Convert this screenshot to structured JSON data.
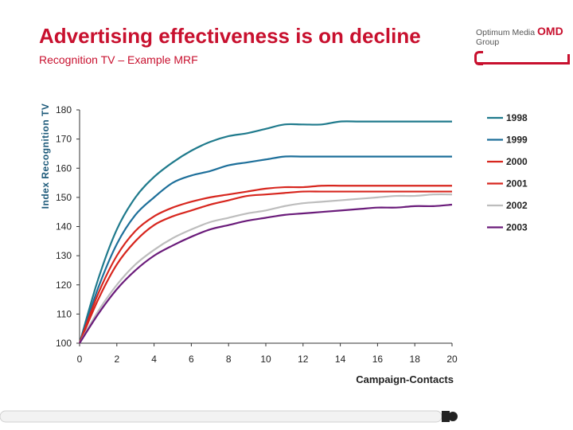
{
  "header": {
    "title": "Advertising effectiveness is on decline",
    "subtitle": "Recognition TV – Example MRF"
  },
  "logo": {
    "name_prefix": "Optimum Media ",
    "name_brand": "OMD",
    "group": "Group"
  },
  "colors": {
    "title_red": "#c8102e",
    "teal": "#1f7a8c",
    "blue": "#1d6f9a",
    "red": "#d7261e",
    "grey": "#bdbdbd",
    "purple": "#6a1b7a"
  },
  "chart_data": {
    "type": "line",
    "ylabel": "Index Recognition TV",
    "xlabel": "Campaign-Contacts",
    "xlim": [
      0,
      20
    ],
    "ylim": [
      100,
      180
    ],
    "xticks": [
      0,
      2,
      4,
      6,
      8,
      10,
      12,
      14,
      16,
      18,
      20
    ],
    "yticks": [
      100,
      110,
      120,
      130,
      140,
      150,
      160,
      170,
      180
    ],
    "legend_position": "right",
    "grid": false,
    "x": [
      0,
      1,
      2,
      3,
      4,
      5,
      6,
      7,
      8,
      9,
      10,
      11,
      12,
      13,
      14,
      15,
      16,
      17,
      18,
      19,
      20
    ],
    "series": [
      {
        "name": "1998",
        "color": "#1f7a8c",
        "values": [
          100,
          122,
          139,
          150,
          157,
          162,
          166,
          169,
          171,
          172,
          173.5,
          175,
          175,
          175,
          176,
          176,
          176,
          176,
          176,
          176,
          176
        ]
      },
      {
        "name": "1999",
        "color": "#1d6f9a",
        "values": [
          100,
          119,
          134,
          144,
          150,
          155,
          157.5,
          159,
          161,
          162,
          163,
          164,
          164,
          164,
          164,
          164,
          164,
          164,
          164,
          164,
          164
        ]
      },
      {
        "name": "2000",
        "color": "#d7261e",
        "values": [
          100,
          117,
          130,
          138.5,
          143.5,
          146.5,
          148.5,
          150,
          151,
          152,
          153,
          153.5,
          153.5,
          154,
          154,
          154,
          154,
          154,
          154,
          154,
          154
        ]
      },
      {
        "name": "2001",
        "color": "#d7261e",
        "values": [
          100,
          115,
          127,
          135,
          140.5,
          143.5,
          145.5,
          147.5,
          149,
          150.5,
          151,
          151.5,
          152,
          152,
          152,
          152,
          152,
          152,
          152,
          152,
          152
        ]
      },
      {
        "name": "2002",
        "color": "#bdbdbd",
        "values": [
          100,
          111,
          120,
          127,
          132,
          136,
          139,
          141.5,
          143,
          144.5,
          145.5,
          147,
          148,
          148.5,
          149,
          149.5,
          150,
          150.5,
          150.5,
          151,
          151
        ]
      },
      {
        "name": "2003",
        "color": "#6a1b7a",
        "values": [
          100,
          110,
          118.5,
          125,
          130,
          133.5,
          136.5,
          139,
          140.5,
          142,
          143,
          144,
          144.5,
          145,
          145.5,
          146,
          146.5,
          146.5,
          147,
          147,
          147.5
        ]
      }
    ]
  }
}
